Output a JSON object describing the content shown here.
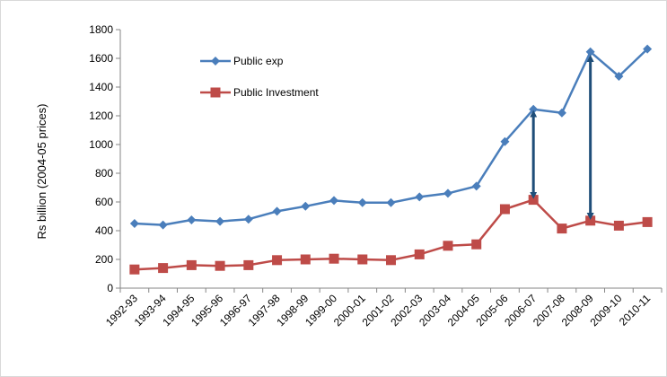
{
  "chart_data": {
    "type": "line",
    "title": "",
    "xlabel": "",
    "ylabel": "Rs billion (2004-05 prices)",
    "ylim": [
      0,
      1800
    ],
    "yticks": [
      0,
      200,
      400,
      600,
      800,
      1000,
      1200,
      1400,
      1600,
      1800
    ],
    "grid": false,
    "legend_position": "top-left",
    "categories": [
      "1992-93",
      "1993-94",
      "1994-95",
      "1995-96",
      "1996-97",
      "1997-98",
      "1998-99",
      "1999-00",
      "2000-01",
      "2001-02",
      "2002-03",
      "2003-04",
      "2004-05",
      "2005-06",
      "2006-07",
      "2007-08",
      "2008-09",
      "2009-10",
      "2010-11"
    ],
    "series": [
      {
        "name": "Public exp",
        "color": "#4a7ebb",
        "marker": "diamond",
        "values": [
          450,
          440,
          475,
          465,
          480,
          535,
          570,
          610,
          595,
          595,
          635,
          660,
          710,
          1020,
          1245,
          1220,
          1645,
          1475,
          1665
        ]
      },
      {
        "name": "Public Investment",
        "color": "#be4b48",
        "marker": "square",
        "values": [
          130,
          140,
          160,
          155,
          160,
          195,
          200,
          205,
          200,
          195,
          235,
          295,
          305,
          550,
          615,
          415,
          470,
          435,
          460
        ]
      }
    ],
    "annotations": [
      {
        "type": "double-arrow",
        "category": "2006-07",
        "from": 1215,
        "to": 645,
        "color": "#1f4e79"
      },
      {
        "type": "double-arrow",
        "category": "2008-09",
        "from": 1600,
        "to": 500,
        "color": "#1f4e79"
      }
    ]
  }
}
